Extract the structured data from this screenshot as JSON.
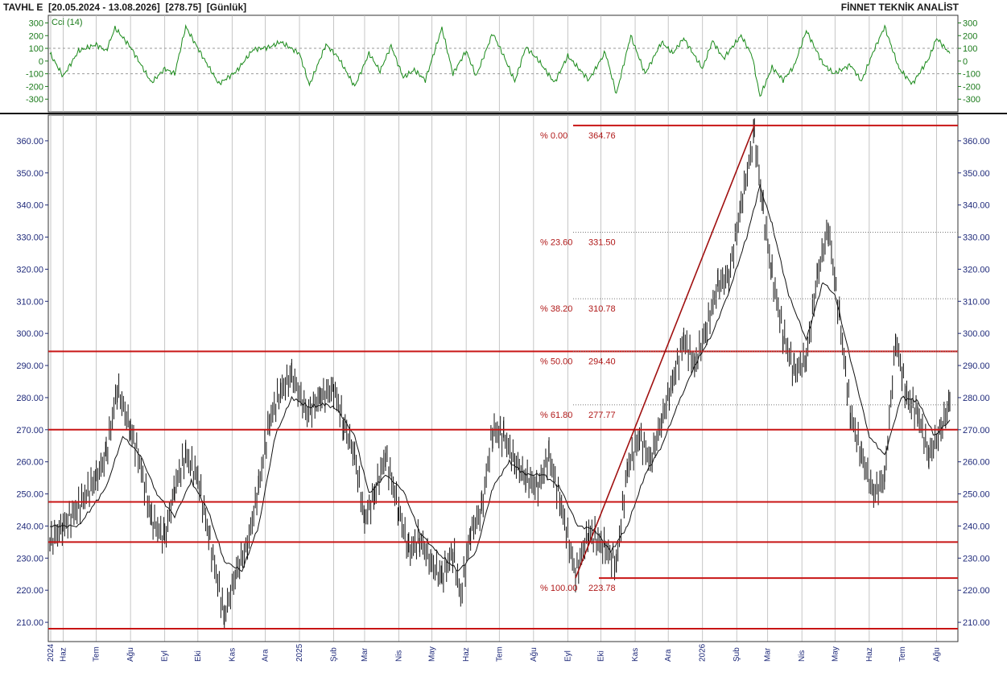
{
  "header": {
    "left": "TAVHL E  [20.05.2024 - 13.08.2026]  [278.75]  [Günlük]",
    "right": "FİNNET TEKNİK ANALİST"
  },
  "indicator": {
    "label": "Cci (14)",
    "ticks": [
      "300",
      "200",
      "100",
      "0",
      "-100",
      "-200",
      "-300"
    ],
    "tick_values": [
      300,
      200,
      100,
      0,
      -100,
      -200,
      -300
    ],
    "ylim": [
      -400,
      360
    ],
    "ref_levels": [
      100,
      -100
    ],
    "color": "#1a8a1a"
  },
  "price_axis": {
    "ticks": [
      "360.00",
      "350.00",
      "340.00",
      "330.00",
      "320.00",
      "310.00",
      "300.00",
      "290.00",
      "280.00",
      "270.00",
      "260.00",
      "250.00",
      "240.00",
      "230.00",
      "220.00",
      "210.00"
    ],
    "tick_values": [
      360,
      350,
      340,
      330,
      320,
      310,
      300,
      290,
      280,
      270,
      260,
      250,
      240,
      230,
      220,
      210
    ],
    "ylim": [
      204,
      368
    ]
  },
  "time_axis": {
    "labels": [
      "2024",
      "Haz",
      "Tem",
      "Ağu",
      "Eyl",
      "Eki",
      "Kas",
      "Ara",
      "2025",
      "Şub",
      "Mar",
      "Nis",
      "May",
      "Haz",
      "Tem",
      "Ağu",
      "Eyl",
      "Eki",
      "Kas",
      "Ara",
      "2026",
      "Şub",
      "Mar",
      "Nis",
      "May",
      "Haz",
      "Tem",
      "Ağu"
    ],
    "start": "2024-05-20",
    "end": "2026-08-13"
  },
  "fibonacci": {
    "levels": [
      {
        "pct": "% 0.00",
        "value": "364.76",
        "v": 364.76
      },
      {
        "pct": "% 23.60",
        "value": "331.50",
        "v": 331.5
      },
      {
        "pct": "% 38.20",
        "value": "310.78",
        "v": 310.78
      },
      {
        "pct": "% 50.00",
        "value": "294.40",
        "v": 294.4
      },
      {
        "pct": "% 61.80",
        "value": "277.77",
        "v": 277.77
      },
      {
        "pct": "% 100.00",
        "value": "223.78",
        "v": 223.78
      }
    ],
    "trend_from": {
      "date": "2025-09-08",
      "price": 223.78
    },
    "trend_to": {
      "date": "2026-02-17",
      "price": 364.76
    }
  },
  "horizontal_lines": [
    294.4,
    270.0,
    247.5,
    235.0,
    208.0
  ],
  "colors": {
    "bars": "#111111",
    "average": "#111111",
    "support": "#c81414",
    "grid": "#b8b8b8"
  },
  "chart_data": {
    "type": "line",
    "title": "TAVHL E  [20.05.2024 - 13.08.2026]  [278.75]  [Günlük]",
    "xlabel": "",
    "ylabel": "",
    "close_last": 278.75,
    "price_path": [
      [
        "2024-05-20",
        235
      ],
      [
        "2024-06-01",
        240
      ],
      [
        "2024-06-15",
        246
      ],
      [
        "2024-07-01",
        255
      ],
      [
        "2024-07-10",
        262
      ],
      [
        "2024-07-20",
        283
      ],
      [
        "2024-08-01",
        270
      ],
      [
        "2024-08-08",
        262
      ],
      [
        "2024-08-20",
        242
      ],
      [
        "2024-09-01",
        236
      ],
      [
        "2024-09-10",
        252
      ],
      [
        "2024-09-20",
        262
      ],
      [
        "2024-10-01",
        255
      ],
      [
        "2024-10-12",
        235
      ],
      [
        "2024-10-25",
        212
      ],
      [
        "2024-11-05",
        226
      ],
      [
        "2024-11-15",
        234
      ],
      [
        "2024-11-25",
        252
      ],
      [
        "2024-12-05",
        273
      ],
      [
        "2024-12-15",
        282
      ],
      [
        "2024-12-25",
        287
      ],
      [
        "2025-01-08",
        275
      ],
      [
        "2025-01-20",
        280
      ],
      [
        "2025-02-01",
        283
      ],
      [
        "2025-02-10",
        272
      ],
      [
        "2025-02-20",
        262
      ],
      [
        "2025-03-01",
        242
      ],
      [
        "2025-03-10",
        250
      ],
      [
        "2025-03-20",
        262
      ],
      [
        "2025-04-01",
        245
      ],
      [
        "2025-04-10",
        232
      ],
      [
        "2025-04-20",
        236
      ],
      [
        "2025-05-01",
        228
      ],
      [
        "2025-05-10",
        224
      ],
      [
        "2025-05-20",
        232
      ],
      [
        "2025-05-27",
        218
      ],
      [
        "2025-06-05",
        238
      ],
      [
        "2025-06-15",
        245
      ],
      [
        "2025-06-25",
        270
      ],
      [
        "2025-07-05",
        268
      ],
      [
        "2025-07-15",
        260
      ],
      [
        "2025-07-25",
        255
      ],
      [
        "2025-08-05",
        252
      ],
      [
        "2025-08-15",
        262
      ],
      [
        "2025-08-25",
        248
      ],
      [
        "2025-09-08",
        225
      ],
      [
        "2025-09-20",
        238
      ],
      [
        "2025-10-05",
        233
      ],
      [
        "2025-10-15",
        228
      ],
      [
        "2025-10-25",
        258
      ],
      [
        "2025-11-05",
        268
      ],
      [
        "2025-11-15",
        260
      ],
      [
        "2025-11-25",
        273
      ],
      [
        "2025-12-05",
        285
      ],
      [
        "2025-12-15",
        298
      ],
      [
        "2025-12-25",
        290
      ],
      [
        "2026-01-05",
        302
      ],
      [
        "2026-01-15",
        315
      ],
      [
        "2026-01-25",
        318
      ],
      [
        "2026-02-05",
        340
      ],
      [
        "2026-02-17",
        362
      ],
      [
        "2026-02-25",
        338
      ],
      [
        "2026-03-05",
        318
      ],
      [
        "2026-03-15",
        300
      ],
      [
        "2026-03-25",
        288
      ],
      [
        "2026-04-05",
        292
      ],
      [
        "2026-04-15",
        318
      ],
      [
        "2026-04-25",
        333
      ],
      [
        "2026-05-05",
        305
      ],
      [
        "2026-05-15",
        275
      ],
      [
        "2026-05-25",
        262
      ],
      [
        "2026-06-05",
        250
      ],
      [
        "2026-06-15",
        255
      ],
      [
        "2026-06-25",
        298
      ],
      [
        "2026-07-05",
        280
      ],
      [
        "2026-07-15",
        275
      ],
      [
        "2026-07-25",
        262
      ],
      [
        "2026-08-05",
        270
      ],
      [
        "2026-08-13",
        278.75
      ]
    ],
    "cci_path": [
      [
        "2024-05-20",
        60
      ],
      [
        "2024-06-01",
        -120
      ],
      [
        "2024-06-15",
        80
      ],
      [
        "2024-07-01",
        130
      ],
      [
        "2024-07-10",
        80
      ],
      [
        "2024-07-18",
        260
      ],
      [
        "2024-08-01",
        110
      ],
      [
        "2024-08-20",
        -170
      ],
      [
        "2024-09-01",
        -60
      ],
      [
        "2024-09-10",
        -100
      ],
      [
        "2024-09-20",
        270
      ],
      [
        "2024-10-05",
        40
      ],
      [
        "2024-10-20",
        -180
      ],
      [
        "2024-11-05",
        -80
      ],
      [
        "2024-11-20",
        90
      ],
      [
        "2024-12-05",
        110
      ],
      [
        "2024-12-15",
        150
      ],
      [
        "2025-01-01",
        60
      ],
      [
        "2025-01-10",
        -190
      ],
      [
        "2025-01-25",
        130
      ],
      [
        "2025-02-05",
        30
      ],
      [
        "2025-02-20",
        -200
      ],
      [
        "2025-03-05",
        60
      ],
      [
        "2025-03-15",
        -80
      ],
      [
        "2025-03-25",
        120
      ],
      [
        "2025-04-05",
        -130
      ],
      [
        "2025-04-15",
        -70
      ],
      [
        "2025-04-25",
        -150
      ],
      [
        "2025-05-10",
        260
      ],
      [
        "2025-05-20",
        -100
      ],
      [
        "2025-06-01",
        80
      ],
      [
        "2025-06-10",
        -120
      ],
      [
        "2025-06-25",
        220
      ],
      [
        "2025-07-05",
        40
      ],
      [
        "2025-07-15",
        -160
      ],
      [
        "2025-07-25",
        110
      ],
      [
        "2025-08-05",
        10
      ],
      [
        "2025-08-20",
        -170
      ],
      [
        "2025-09-01",
        40
      ],
      [
        "2025-09-20",
        -150
      ],
      [
        "2025-10-05",
        70
      ],
      [
        "2025-10-15",
        -260
      ],
      [
        "2025-10-28",
        200
      ],
      [
        "2025-11-10",
        -100
      ],
      [
        "2025-11-25",
        150
      ],
      [
        "2025-12-05",
        60
      ],
      [
        "2025-12-15",
        180
      ],
      [
        "2026-01-01",
        -60
      ],
      [
        "2026-01-10",
        160
      ],
      [
        "2026-01-20",
        20
      ],
      [
        "2026-02-05",
        200
      ],
      [
        "2026-02-15",
        40
      ],
      [
        "2026-02-22",
        -280
      ],
      [
        "2026-03-05",
        -50
      ],
      [
        "2026-03-15",
        -150
      ],
      [
        "2026-03-25",
        -40
      ],
      [
        "2026-04-05",
        240
      ],
      [
        "2026-04-20",
        -20
      ],
      [
        "2026-04-30",
        -100
      ],
      [
        "2026-05-15",
        -30
      ],
      [
        "2026-05-25",
        -160
      ],
      [
        "2026-06-05",
        80
      ],
      [
        "2026-06-15",
        270
      ],
      [
        "2026-06-28",
        -60
      ],
      [
        "2026-07-10",
        -180
      ],
      [
        "2026-07-25",
        20
      ],
      [
        "2026-08-01",
        180
      ],
      [
        "2026-08-13",
        60
      ]
    ],
    "average_path": [
      [
        "2024-05-20",
        240
      ],
      [
        "2024-06-15",
        240
      ],
      [
        "2024-07-10",
        252
      ],
      [
        "2024-07-25",
        268
      ],
      [
        "2024-08-10",
        262
      ],
      [
        "2024-08-25",
        250
      ],
      [
        "2024-09-10",
        243
      ],
      [
        "2024-09-25",
        254
      ],
      [
        "2024-10-10",
        245
      ],
      [
        "2024-10-25",
        229
      ],
      [
        "2024-11-10",
        226
      ],
      [
        "2024-11-25",
        240
      ],
      [
        "2024-12-10",
        268
      ],
      [
        "2024-12-25",
        280
      ],
      [
        "2025-01-10",
        277
      ],
      [
        "2025-01-25",
        278
      ],
      [
        "2025-02-05",
        276
      ],
      [
        "2025-02-20",
        268
      ],
      [
        "2025-03-05",
        250
      ],
      [
        "2025-03-20",
        256
      ],
      [
        "2025-04-05",
        251
      ],
      [
        "2025-04-20",
        238
      ],
      [
        "2025-05-05",
        232
      ],
      [
        "2025-05-25",
        226
      ],
      [
        "2025-06-10",
        232
      ],
      [
        "2025-06-25",
        252
      ],
      [
        "2025-07-10",
        260
      ],
      [
        "2025-07-25",
        256
      ],
      [
        "2025-08-10",
        256
      ],
      [
        "2025-08-25",
        252
      ],
      [
        "2025-09-10",
        240
      ],
      [
        "2025-09-25",
        239
      ],
      [
        "2025-10-10",
        232
      ],
      [
        "2025-10-25",
        240
      ],
      [
        "2025-11-10",
        256
      ],
      [
        "2025-11-25",
        265
      ],
      [
        "2025-12-10",
        278
      ],
      [
        "2025-12-25",
        290
      ],
      [
        "2026-01-10",
        300
      ],
      [
        "2026-01-25",
        313
      ],
      [
        "2026-02-10",
        330
      ],
      [
        "2026-02-22",
        346
      ],
      [
        "2026-03-05",
        334
      ],
      [
        "2026-03-20",
        312
      ],
      [
        "2026-04-05",
        298
      ],
      [
        "2026-04-20",
        316
      ],
      [
        "2026-05-01",
        312
      ],
      [
        "2026-05-15",
        292
      ],
      [
        "2026-06-01",
        268
      ],
      [
        "2026-06-15",
        262
      ],
      [
        "2026-06-30",
        280
      ],
      [
        "2026-07-15",
        279
      ],
      [
        "2026-07-30",
        268
      ],
      [
        "2026-08-13",
        273
      ]
    ]
  }
}
